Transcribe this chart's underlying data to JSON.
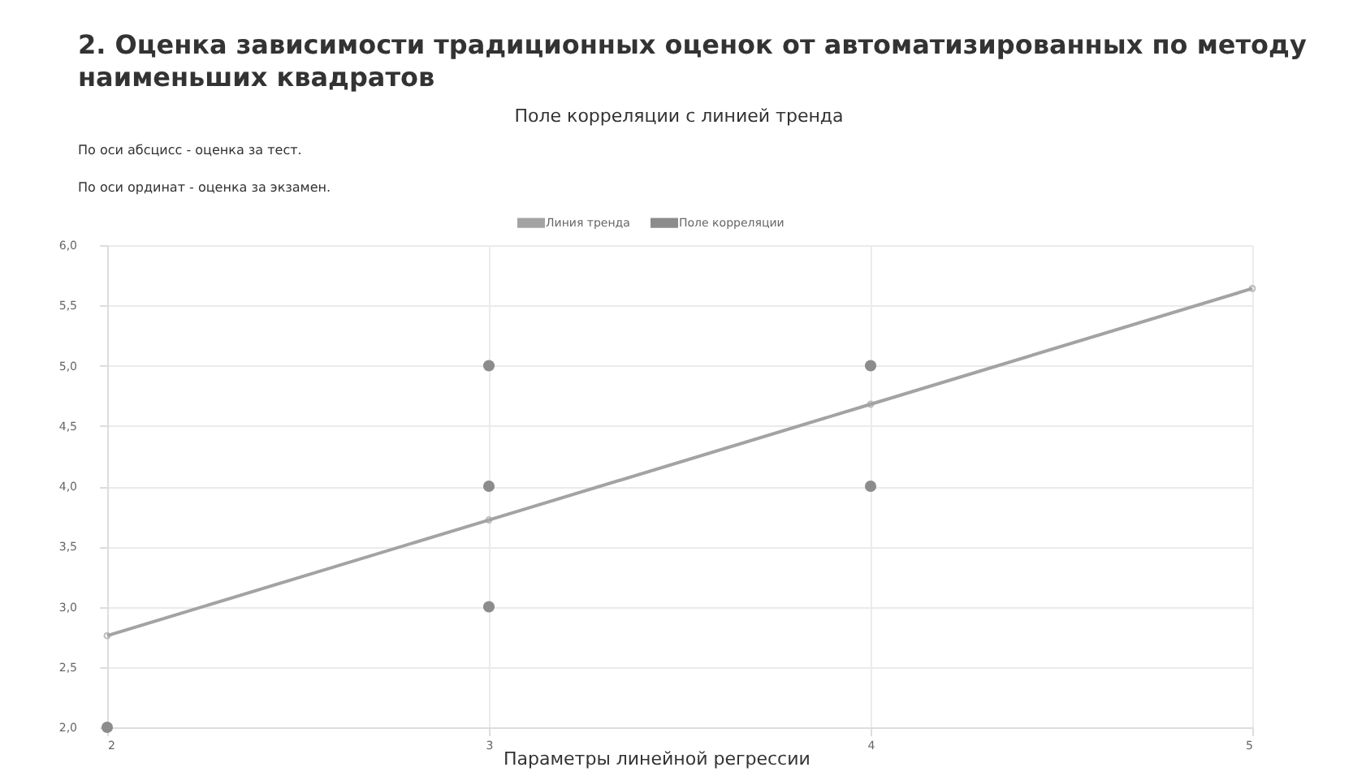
{
  "chart_data": {
    "type": "scatter",
    "title": "2. Оценка зависимости традиционных оценок от автоматизированных по методу наименьших квадратов",
    "subtitle": "Поле корреляции с линией тренда",
    "annotations": [
      "По оси абсцисс - оценка за тест.",
      "По оси ординат - оценка за экзамен.",
      "Параметры линейной регрессии"
    ],
    "series": [
      {
        "name": "Линия тренда",
        "type": "line",
        "color": "#a3a3a3",
        "marker": "circle",
        "x": [
          2,
          3,
          4,
          5
        ],
        "values": [
          2.76,
          3.72,
          4.68,
          5.64
        ]
      },
      {
        "name": "Поле корреляции",
        "color": "#8c8c8c",
        "marker": "circle",
        "x": [
          2,
          3,
          3,
          3,
          4,
          4
        ],
        "values": [
          2,
          3,
          4,
          5,
          4,
          5
        ]
      }
    ],
    "xlim": [
      2,
      5
    ],
    "xticks": [
      2,
      3,
      4,
      5
    ],
    "ylim": [
      2,
      6
    ],
    "yticks": [
      {
        "value": 2,
        "label": "2,0"
      },
      {
        "value": 2.5,
        "label": "2,5"
      },
      {
        "value": 3,
        "label": "3,0"
      },
      {
        "value": 3.5,
        "label": "3,5"
      },
      {
        "value": 4,
        "label": "4,0"
      },
      {
        "value": 4.5,
        "label": "4,5"
      },
      {
        "value": 5,
        "label": "5,0"
      },
      {
        "value": 5.5,
        "label": "5,5"
      },
      {
        "value": 6,
        "label": "6,0"
      }
    ],
    "grid": true,
    "legend": "top"
  }
}
